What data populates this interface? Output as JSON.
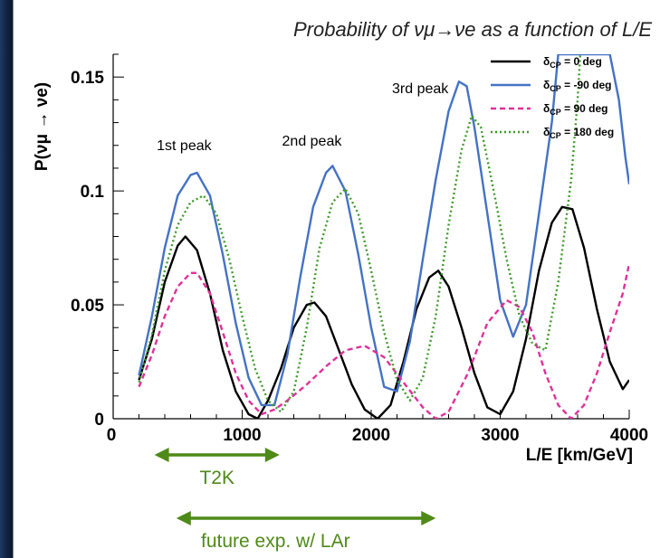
{
  "title": "Probability of νμ→νe as a function of L/E",
  "chart_data": {
    "type": "line",
    "title": "Probability of νμ→νe as a function of L/E",
    "xlabel": "L/E [km/GeV]",
    "ylabel": "P(νμ → νe)",
    "xlim": [
      0,
      4000
    ],
    "ylim": [
      0,
      0.16
    ],
    "xticks": [
      "0",
      "1000",
      "2000",
      "3000",
      "4000"
    ],
    "yticks": [
      "0",
      "0.05",
      "0.1",
      "0.15"
    ],
    "grid": false,
    "legend_position": "top-right",
    "series": [
      {
        "name": "δCP = 0 deg",
        "label_parts": [
          "δ",
          "CP",
          " = 0 deg"
        ],
        "color": "#000000",
        "dash": "solid",
        "points": [
          [
            200,
            0.017
          ],
          [
            300,
            0.035
          ],
          [
            400,
            0.06
          ],
          [
            500,
            0.076
          ],
          [
            560,
            0.08
          ],
          [
            650,
            0.074
          ],
          [
            750,
            0.055
          ],
          [
            850,
            0.03
          ],
          [
            950,
            0.012
          ],
          [
            1050,
            0.002
          ],
          [
            1120,
            0.0
          ],
          [
            1200,
            0.008
          ],
          [
            1300,
            0.022
          ],
          [
            1400,
            0.04
          ],
          [
            1500,
            0.05
          ],
          [
            1560,
            0.051
          ],
          [
            1650,
            0.045
          ],
          [
            1750,
            0.03
          ],
          [
            1850,
            0.015
          ],
          [
            1950,
            0.004
          ],
          [
            2050,
            0.0
          ],
          [
            2150,
            0.006
          ],
          [
            2250,
            0.025
          ],
          [
            2350,
            0.048
          ],
          [
            2450,
            0.062
          ],
          [
            2520,
            0.065
          ],
          [
            2600,
            0.058
          ],
          [
            2700,
            0.04
          ],
          [
            2800,
            0.02
          ],
          [
            2900,
            0.005
          ],
          [
            3000,
            0.002
          ],
          [
            3100,
            0.012
          ],
          [
            3200,
            0.035
          ],
          [
            3300,
            0.065
          ],
          [
            3400,
            0.086
          ],
          [
            3480,
            0.093
          ],
          [
            3560,
            0.092
          ],
          [
            3650,
            0.075
          ],
          [
            3750,
            0.048
          ],
          [
            3850,
            0.025
          ],
          [
            3950,
            0.013
          ],
          [
            4000,
            0.017
          ]
        ]
      },
      {
        "name": "δCP = -90 deg",
        "label_parts": [
          "δ",
          "CP",
          " = -90 deg"
        ],
        "color": "#4472c4",
        "dash": "solid",
        "points": [
          [
            200,
            0.019
          ],
          [
            300,
            0.045
          ],
          [
            400,
            0.075
          ],
          [
            500,
            0.098
          ],
          [
            600,
            0.107
          ],
          [
            650,
            0.108
          ],
          [
            750,
            0.098
          ],
          [
            850,
            0.072
          ],
          [
            950,
            0.042
          ],
          [
            1050,
            0.018
          ],
          [
            1150,
            0.006
          ],
          [
            1250,
            0.006
          ],
          [
            1350,
            0.028
          ],
          [
            1450,
            0.062
          ],
          [
            1550,
            0.093
          ],
          [
            1650,
            0.108
          ],
          [
            1700,
            0.111
          ],
          [
            1800,
            0.1
          ],
          [
            1900,
            0.072
          ],
          [
            2000,
            0.04
          ],
          [
            2100,
            0.014
          ],
          [
            2200,
            0.012
          ],
          [
            2300,
            0.034
          ],
          [
            2400,
            0.07
          ],
          [
            2500,
            0.105
          ],
          [
            2600,
            0.135
          ],
          [
            2680,
            0.148
          ],
          [
            2740,
            0.146
          ],
          [
            2800,
            0.128
          ],
          [
            2900,
            0.09
          ],
          [
            3000,
            0.052
          ],
          [
            3100,
            0.036
          ],
          [
            3200,
            0.05
          ],
          [
            3300,
            0.09
          ],
          [
            3400,
            0.13
          ],
          [
            3450,
            0.16
          ],
          [
            3850,
            0.16
          ],
          [
            3920,
            0.14
          ],
          [
            3970,
            0.115
          ],
          [
            4000,
            0.103
          ]
        ]
      },
      {
        "name": "δCP = 90 deg",
        "label_parts": [
          "δ",
          "CP",
          " =  90 deg"
        ],
        "color": "#e0309a",
        "dash": "6,4",
        "points": [
          [
            200,
            0.014
          ],
          [
            300,
            0.028
          ],
          [
            400,
            0.045
          ],
          [
            500,
            0.058
          ],
          [
            600,
            0.064
          ],
          [
            650,
            0.064
          ],
          [
            750,
            0.055
          ],
          [
            850,
            0.038
          ],
          [
            950,
            0.02
          ],
          [
            1050,
            0.008
          ],
          [
            1150,
            0.002
          ],
          [
            1250,
            0.004
          ],
          [
            1350,
            0.008
          ],
          [
            1500,
            0.015
          ],
          [
            1650,
            0.023
          ],
          [
            1800,
            0.03
          ],
          [
            1950,
            0.032
          ],
          [
            2100,
            0.027
          ],
          [
            2250,
            0.016
          ],
          [
            2400,
            0.005
          ],
          [
            2500,
            0.0
          ],
          [
            2600,
            0.003
          ],
          [
            2750,
            0.02
          ],
          [
            2900,
            0.042
          ],
          [
            3050,
            0.052
          ],
          [
            3150,
            0.049
          ],
          [
            3250,
            0.038
          ],
          [
            3350,
            0.02
          ],
          [
            3450,
            0.006
          ],
          [
            3550,
            0.0
          ],
          [
            3650,
            0.006
          ],
          [
            3750,
            0.02
          ],
          [
            3850,
            0.038
          ],
          [
            3950,
            0.055
          ],
          [
            4000,
            0.068
          ]
        ]
      },
      {
        "name": "δCP = 180 deg",
        "label_parts": [
          "δ",
          "CP",
          " = 180 deg"
        ],
        "color": "#3f9a2b",
        "dash": "2,3",
        "points": [
          [
            200,
            0.016
          ],
          [
            300,
            0.037
          ],
          [
            400,
            0.065
          ],
          [
            500,
            0.085
          ],
          [
            600,
            0.095
          ],
          [
            700,
            0.098
          ],
          [
            800,
            0.09
          ],
          [
            900,
            0.07
          ],
          [
            1000,
            0.045
          ],
          [
            1100,
            0.022
          ],
          [
            1200,
            0.008
          ],
          [
            1300,
            0.003
          ],
          [
            1400,
            0.012
          ],
          [
            1500,
            0.04
          ],
          [
            1600,
            0.075
          ],
          [
            1700,
            0.095
          ],
          [
            1800,
            0.101
          ],
          [
            1900,
            0.09
          ],
          [
            2000,
            0.065
          ],
          [
            2100,
            0.038
          ],
          [
            2200,
            0.017
          ],
          [
            2300,
            0.008
          ],
          [
            2400,
            0.018
          ],
          [
            2500,
            0.045
          ],
          [
            2600,
            0.085
          ],
          [
            2700,
            0.118
          ],
          [
            2780,
            0.133
          ],
          [
            2850,
            0.128
          ],
          [
            2950,
            0.1
          ],
          [
            3050,
            0.07
          ],
          [
            3150,
            0.045
          ],
          [
            3250,
            0.033
          ],
          [
            3350,
            0.03
          ],
          [
            3450,
            0.06
          ],
          [
            3550,
            0.105
          ],
          [
            3600,
            0.14
          ],
          [
            3620,
            0.16
          ]
        ]
      }
    ],
    "annotations": [
      {
        "text": "1st peak",
        "x": 550,
        "y": 0.118
      },
      {
        "text": "2nd peak",
        "x": 1540,
        "y": 0.12
      },
      {
        "text": "3rd peak",
        "x": 2380,
        "y": 0.143
      }
    ]
  },
  "ranges": [
    {
      "label": "T2K",
      "from": 320,
      "to": 1290
    },
    {
      "label": "future exp. w/ LAr",
      "from": 490,
      "to": 2500
    }
  ],
  "colors": {
    "range": "#4e8a18",
    "left_bar": "#10233f"
  }
}
